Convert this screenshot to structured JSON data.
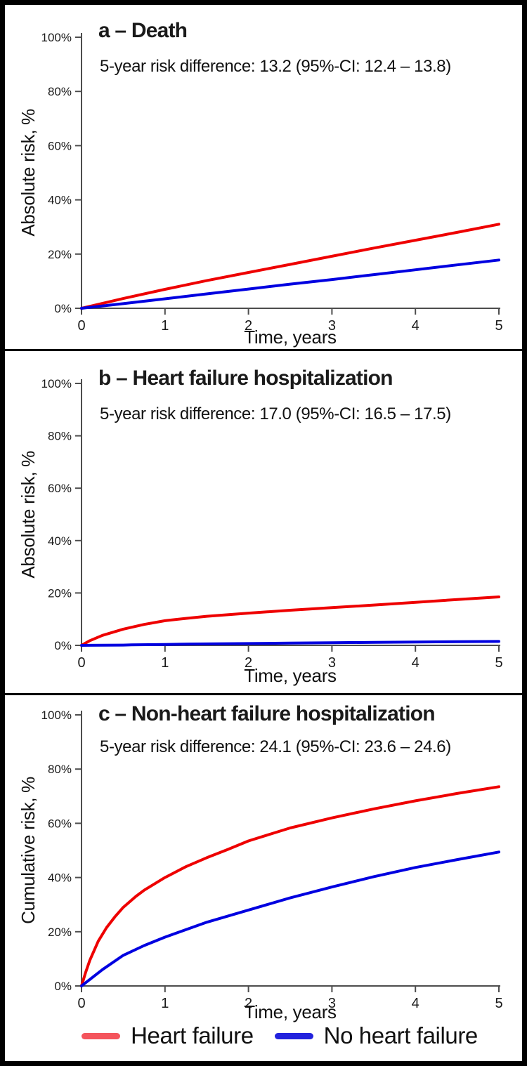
{
  "legend": {
    "items": [
      {
        "label": "Heart failure",
        "color": "#f4545c"
      },
      {
        "label": "No heart failure",
        "color": "#2222dd"
      }
    ]
  },
  "colors": {
    "heart_failure_line": "#ee0000",
    "no_heart_failure_line": "#0000e0",
    "axis": "#4d4d4d",
    "tick_text": "#1a1a1a"
  },
  "chart_data": [
    {
      "type": "line",
      "panel": "a",
      "title": "a – Death",
      "subtitle": "5-year risk difference: 13.2 (95%-CI: 12.4 – 13.8)",
      "xlabel": "Time, years",
      "ylabel": "Absolute risk, %",
      "xlim": [
        0,
        5
      ],
      "ylim": [
        0,
        100
      ],
      "x_ticks": [
        0,
        1,
        2,
        3,
        4,
        5
      ],
      "x_tick_labels": [
        "0",
        "1",
        "2",
        "3",
        "4",
        "5"
      ],
      "y_ticks": [
        0,
        20,
        40,
        60,
        80,
        100
      ],
      "y_tick_labels": [
        "0%",
        "20%",
        "40%",
        "60%",
        "80%",
        "100%"
      ],
      "grid": false,
      "series": [
        {
          "name": "Heart failure",
          "color": "#ee0000",
          "points": [
            [
              0,
              0
            ],
            [
              0.5,
              3.6
            ],
            [
              1,
              7.0
            ],
            [
              1.5,
              10.2
            ],
            [
              2,
              13.2
            ],
            [
              2.5,
              16.2
            ],
            [
              3,
              19.2
            ],
            [
              3.5,
              22.2
            ],
            [
              4,
              25.1
            ],
            [
              4.5,
              28.0
            ],
            [
              5,
              31.0
            ]
          ]
        },
        {
          "name": "No heart failure",
          "color": "#0000e0",
          "points": [
            [
              0,
              0
            ],
            [
              0.5,
              1.7
            ],
            [
              1,
              3.5
            ],
            [
              1.5,
              5.3
            ],
            [
              2,
              7.1
            ],
            [
              2.5,
              8.9
            ],
            [
              3,
              10.6
            ],
            [
              3.5,
              12.4
            ],
            [
              4,
              14.2
            ],
            [
              4.5,
              16.0
            ],
            [
              5,
              17.8
            ]
          ]
        }
      ]
    },
    {
      "type": "line",
      "panel": "b",
      "title": "b – Heart failure hospitalization",
      "subtitle": "5-year risk difference: 17.0 (95%-CI: 16.5 – 17.5)",
      "xlabel": "Time, years",
      "ylabel": "Absolute risk, %",
      "xlim": [
        0,
        5
      ],
      "ylim": [
        0,
        100
      ],
      "x_ticks": [
        0,
        1,
        2,
        3,
        4,
        5
      ],
      "x_tick_labels": [
        "0",
        "1",
        "2",
        "3",
        "4",
        "5"
      ],
      "y_ticks": [
        0,
        20,
        40,
        60,
        80,
        100
      ],
      "y_tick_labels": [
        "0%",
        "20%",
        "40%",
        "60%",
        "80%",
        "100%"
      ],
      "grid": false,
      "series": [
        {
          "name": "Heart failure",
          "color": "#ee0000",
          "points": [
            [
              0,
              0
            ],
            [
              0.1,
              1.8
            ],
            [
              0.25,
              3.8
            ],
            [
              0.5,
              6.2
            ],
            [
              0.75,
              8.0
            ],
            [
              1,
              9.4
            ],
            [
              1.25,
              10.3
            ],
            [
              1.5,
              11.1
            ],
            [
              2,
              12.3
            ],
            [
              2.5,
              13.4
            ],
            [
              3,
              14.4
            ],
            [
              3.5,
              15.4
            ],
            [
              4,
              16.4
            ],
            [
              4.5,
              17.5
            ],
            [
              5,
              18.5
            ]
          ]
        },
        {
          "name": "No heart failure",
          "color": "#0000e0",
          "points": [
            [
              0,
              0
            ],
            [
              0.5,
              0.1
            ],
            [
              0.6,
              0.2
            ],
            [
              1,
              0.35
            ],
            [
              1.3,
              0.5
            ],
            [
              2,
              0.7
            ],
            [
              2.5,
              0.85
            ],
            [
              3,
              1.0
            ],
            [
              3.5,
              1.15
            ],
            [
              4,
              1.25
            ],
            [
              4.5,
              1.4
            ],
            [
              5,
              1.5
            ]
          ]
        }
      ]
    },
    {
      "type": "line",
      "panel": "c",
      "title": "c – Non-heart failure hospitalization",
      "subtitle": "5-year risk difference: 24.1 (95%-CI: 23.6 – 24.6)",
      "xlabel": "Time, years",
      "ylabel": "Cumulative risk, %",
      "xlim": [
        0,
        5
      ],
      "ylim": [
        0,
        100
      ],
      "x_ticks": [
        0,
        1,
        2,
        3,
        4,
        5
      ],
      "x_tick_labels": [
        "0",
        "1",
        "2",
        "3",
        "4",
        "5"
      ],
      "y_ticks": [
        0,
        20,
        40,
        60,
        80,
        100
      ],
      "y_tick_labels": [
        "0%",
        "20%",
        "40%",
        "60%",
        "80%",
        "100%"
      ],
      "grid": false,
      "series": [
        {
          "name": "Heart failure",
          "color": "#ee0000",
          "points": [
            [
              0,
              0
            ],
            [
              0.05,
              5
            ],
            [
              0.1,
              9.5
            ],
            [
              0.2,
              16.5
            ],
            [
              0.3,
              21.5
            ],
            [
              0.4,
              25.5
            ],
            [
              0.5,
              29.0
            ],
            [
              0.65,
              33.0
            ],
            [
              0.75,
              35.3
            ],
            [
              1,
              40.0
            ],
            [
              1.25,
              44.0
            ],
            [
              1.5,
              47.3
            ],
            [
              1.75,
              50.3
            ],
            [
              2,
              53.5
            ],
            [
              2.5,
              58.3
            ],
            [
              3,
              62.0
            ],
            [
              3.5,
              65.3
            ],
            [
              4,
              68.3
            ],
            [
              4.5,
              71.0
            ],
            [
              5,
              73.5
            ]
          ]
        },
        {
          "name": "No heart failure",
          "color": "#0000e0",
          "points": [
            [
              0,
              0
            ],
            [
              0.25,
              6.0
            ],
            [
              0.5,
              11.3
            ],
            [
              0.75,
              14.9
            ],
            [
              1,
              18.0
            ],
            [
              1.5,
              23.5
            ],
            [
              2,
              28.0
            ],
            [
              2.5,
              32.5
            ],
            [
              3,
              36.5
            ],
            [
              3.5,
              40.3
            ],
            [
              4,
              43.7
            ],
            [
              4.5,
              46.6
            ],
            [
              5,
              49.4
            ]
          ]
        }
      ]
    }
  ]
}
